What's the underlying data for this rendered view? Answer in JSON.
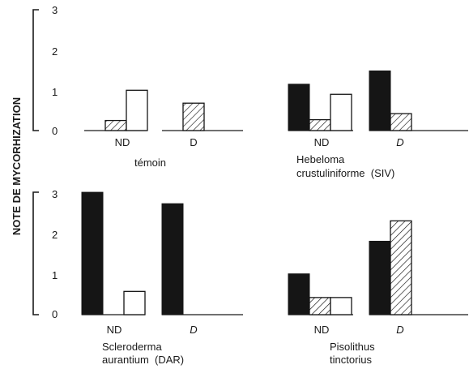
{
  "chart_data": [
    {
      "type": "bar",
      "panel_label_lines": [
        "témoin"
      ],
      "categories": [
        "ND",
        "D"
      ],
      "series_styles": [
        "solid",
        "hatched",
        "open"
      ],
      "values": [
        [
          0,
          0.25,
          1.0
        ],
        [
          0,
          0.68,
          0
        ]
      ],
      "ylim": [
        0,
        3
      ],
      "yticks": [
        "0",
        "1",
        "2",
        "3"
      ]
    },
    {
      "type": "bar",
      "panel_label_lines": [
        "Hebeloma",
        "crustuliniforme  (SIV)"
      ],
      "categories": [
        "ND",
        "D"
      ],
      "series_styles": [
        "solid",
        "hatched",
        "open"
      ],
      "values": [
        [
          1.15,
          0.27,
          0.9
        ],
        [
          1.48,
          0.42,
          0
        ]
      ],
      "ylim": [
        0,
        3
      ],
      "yticks": [
        "0",
        "1",
        "2",
        "3"
      ]
    },
    {
      "type": "bar",
      "panel_label_lines": [
        "Scleroderma",
        "aurantium  (DAR)"
      ],
      "categories": [
        "ND",
        "D"
      ],
      "series_styles": [
        "solid",
        "hatched",
        "open"
      ],
      "values": [
        [
          3.0,
          0,
          0.57
        ],
        [
          2.72,
          0,
          0
        ]
      ],
      "ylim": [
        0,
        3
      ],
      "yticks": [
        "0",
        "1",
        "2",
        "3"
      ]
    },
    {
      "type": "bar",
      "panel_label_lines": [
        "Pisolithus",
        "tinctorius"
      ],
      "categories": [
        "ND",
        "D"
      ],
      "series_styles": [
        "solid",
        "hatched",
        "open"
      ],
      "values": [
        [
          1.0,
          0.42,
          0.42
        ],
        [
          1.8,
          2.3,
          0
        ]
      ],
      "ylim": [
        0,
        3
      ],
      "yticks": [
        "0",
        "1",
        "2",
        "3"
      ]
    }
  ],
  "ylabel": "NOTE DE MYCORHIZATION"
}
